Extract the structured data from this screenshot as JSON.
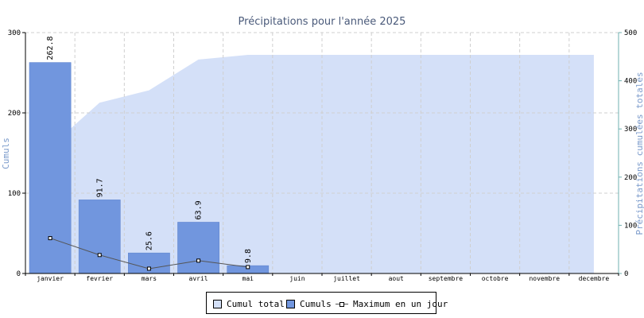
{
  "chart_data": {
    "type": "bar",
    "title": "Précipitations pour l'année 2025",
    "ylabel": "Cumuls",
    "y2label": "Précipitations cumulées totales",
    "categories": [
      "janvier",
      "fevrier",
      "mars",
      "avril",
      "mai",
      "juin",
      "juillet",
      "aout",
      "septembre",
      "octobre",
      "novembre",
      "decembre"
    ],
    "ylim": [
      0,
      300
    ],
    "y2lim": [
      0,
      500
    ],
    "yticks": [
      "0",
      "100",
      "200",
      "300"
    ],
    "y2ticks": [
      "0",
      "100",
      "200",
      "300",
      "400",
      "500"
    ],
    "grid": true,
    "legend_position": "bottom",
    "series": [
      {
        "name": "Cumul total",
        "type": "area",
        "axis": "right",
        "color": "#d4e0f8",
        "values": [
          262.8,
          354.5,
          380.1,
          444.0,
          453.8,
          453.8,
          453.8,
          453.8,
          453.8,
          453.8,
          453.8,
          453.8
        ]
      },
      {
        "name": "Cumuls",
        "type": "bar",
        "axis": "left",
        "color": "#7196de",
        "values": [
          262.8,
          91.7,
          25.6,
          63.9,
          9.8,
          null,
          null,
          null,
          null,
          null,
          null,
          null
        ],
        "labels": [
          "262.8",
          "91.7",
          "25.6",
          "63.9",
          "9.8",
          "",
          "",
          "",
          "",
          "",
          "",
          ""
        ]
      },
      {
        "name": "Maximum en un jour",
        "type": "line",
        "axis": "left",
        "color": "#555555",
        "values": [
          44,
          23,
          6,
          16,
          8,
          null,
          null,
          null,
          null,
          null,
          null,
          null
        ]
      }
    ]
  }
}
